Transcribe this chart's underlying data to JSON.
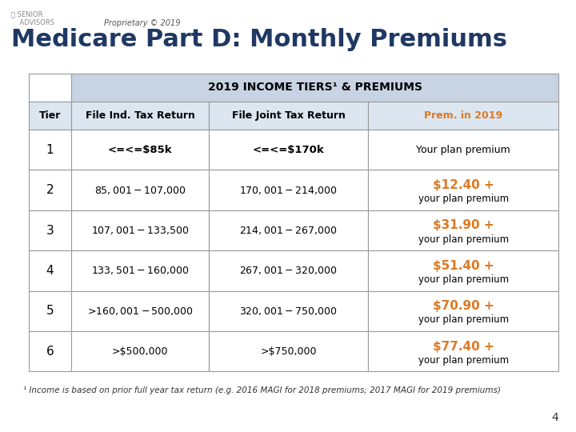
{
  "title": "Medicare Part D: Monthly Premiums",
  "proprietary": "Proprietary © 2019",
  "table_header": "2019 INCOME TIERS¹ & PREMIUMS",
  "col_headers": [
    "Tier",
    "File Ind. Tax Return",
    "File Joint Tax Return",
    "Prem. in 2019"
  ],
  "rows": [
    [
      "1",
      "<=¤$85k",
      "<=¤$170k",
      "Your plan premium",
      ""
    ],
    [
      "2",
      "$85,001-$107,000",
      "$170,001-$214,000",
      "$12.40 +",
      "your plan premium"
    ],
    [
      "3",
      "$107,001-$133,500",
      "$214,001-$267,000",
      "$31.90 +",
      "your plan premium"
    ],
    [
      "4",
      "$133,501-$160,000",
      "$267,001-$320,000",
      "$51.40 +",
      "your plan premium"
    ],
    [
      "5",
      ">$160,001-$500,000",
      "$320,001-$750,000",
      "$70.90 +",
      "your plan premium"
    ],
    [
      "6",
      ">$500,000",
      ">$750,000",
      "$77.40 +",
      "your plan premium"
    ]
  ],
  "header_bg": "#c8d4e3",
  "col_header_bg": "#dce6f0",
  "title_color": "#1f3864",
  "orange_color": "#e07820",
  "black_color": "#000000",
  "border_color": "#999999",
  "bg_color": "#ffffff",
  "blue_line_color": "#4472c4",
  "footnote": "¹ Income is based on prior full year tax return (e.g. 2016 MAGI for 2018 premiums; 2017 MAGI for 2019 premiums)",
  "page_num": "4"
}
